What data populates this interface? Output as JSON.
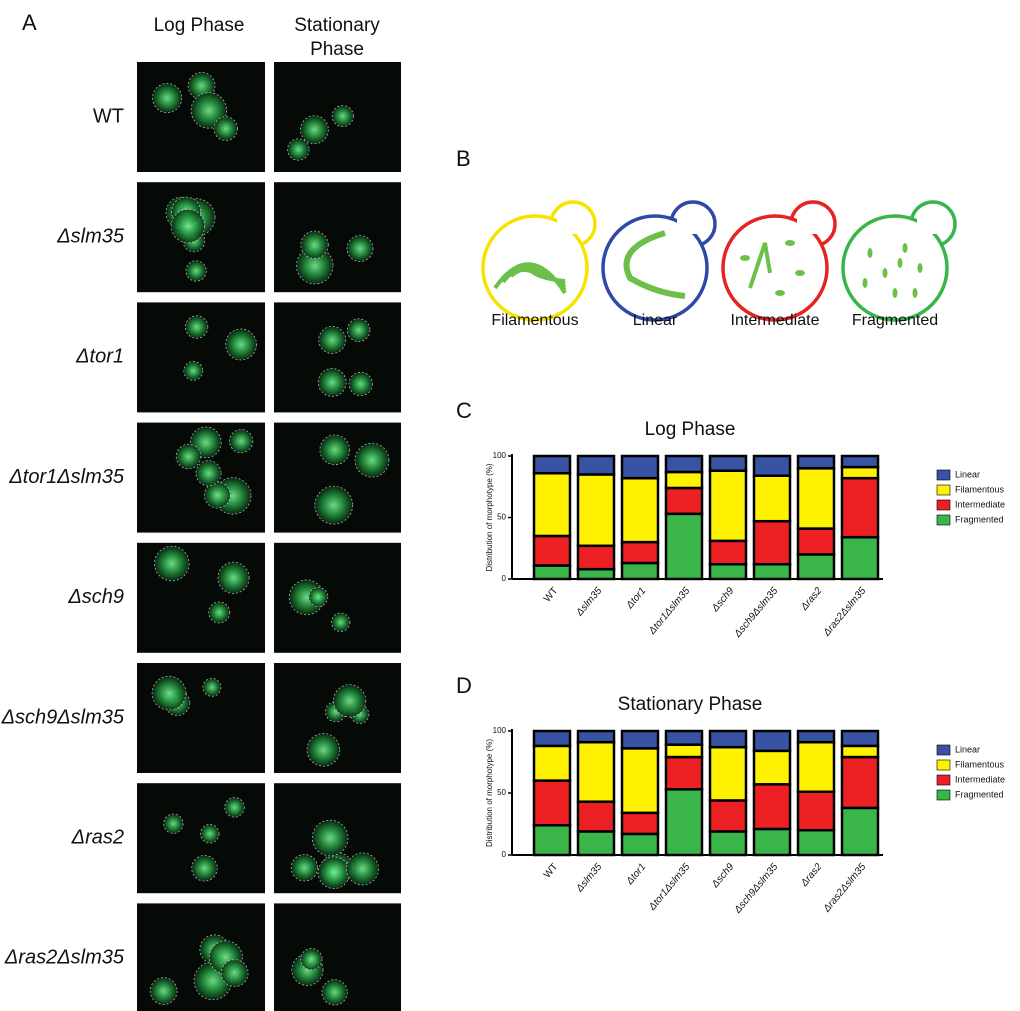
{
  "panel_a": {
    "label": "A",
    "columns": [
      "Log Phase",
      "Stationary Phase"
    ],
    "rows": [
      "WT",
      "Δslm35",
      "Δtor1",
      "Δtor1Δslm35",
      "Δsch9",
      "Δsch9Δslm35",
      "Δras2",
      "Δras2Δslm35"
    ]
  },
  "panel_b": {
    "label": "B",
    "morphotypes": [
      "Filamentous",
      "Linear",
      "Intermediate",
      "Fragmented"
    ]
  },
  "chart_data": [
    {
      "type": "stacked_bar",
      "panel": "C",
      "title": "Log Phase",
      "y_label": "Distribution of morphotype (%)",
      "categories": [
        "WT",
        "Δslm35",
        "Δtor1",
        "Δtor1Δslm35",
        "Δsch9",
        "Δsch9Δslm35",
        "Δras2",
        "Δras2Δslm35"
      ],
      "series": [
        {
          "name": "Fragmented",
          "color": "#3ab54a",
          "values": [
            11,
            8,
            13,
            53,
            12,
            12,
            20,
            34
          ]
        },
        {
          "name": "Intermediate",
          "color": "#ed2024",
          "values": [
            24,
            19,
            17,
            21,
            19,
            35,
            21,
            48
          ]
        },
        {
          "name": "Filamentous",
          "color": "#fff200",
          "values": [
            51,
            58,
            52,
            13,
            57,
            37,
            49,
            9
          ]
        },
        {
          "name": "Linear",
          "color": "#3953a4",
          "values": [
            14,
            15,
            18,
            13,
            12,
            16,
            10,
            9
          ]
        }
      ],
      "ylim": [
        0,
        100
      ],
      "yticks": [
        0,
        50,
        100
      ]
    },
    {
      "type": "stacked_bar",
      "panel": "D",
      "title": "Stationary Phase",
      "y_label": "Distribution of morphotype (%)",
      "categories": [
        "WT",
        "Δslm35",
        "Δtor1",
        "Δtor1Δslm35",
        "Δsch9",
        "Δsch9Δslm35",
        "Δras2",
        "Δras2Δslm35"
      ],
      "series": [
        {
          "name": "Fragmented",
          "color": "#3ab54a",
          "values": [
            24,
            19,
            17,
            53,
            19,
            21,
            20,
            38
          ]
        },
        {
          "name": "Intermediate",
          "color": "#ed2024",
          "values": [
            36,
            24,
            17,
            26,
            25,
            36,
            31,
            41
          ]
        },
        {
          "name": "Filamentous",
          "color": "#fff200",
          "values": [
            28,
            48,
            52,
            10,
            43,
            27,
            40,
            9
          ]
        },
        {
          "name": "Linear",
          "color": "#3953a4",
          "values": [
            12,
            9,
            14,
            11,
            13,
            16,
            9,
            12
          ]
        }
      ],
      "ylim": [
        0,
        100
      ],
      "yticks": [
        0,
        50,
        100
      ]
    }
  ]
}
